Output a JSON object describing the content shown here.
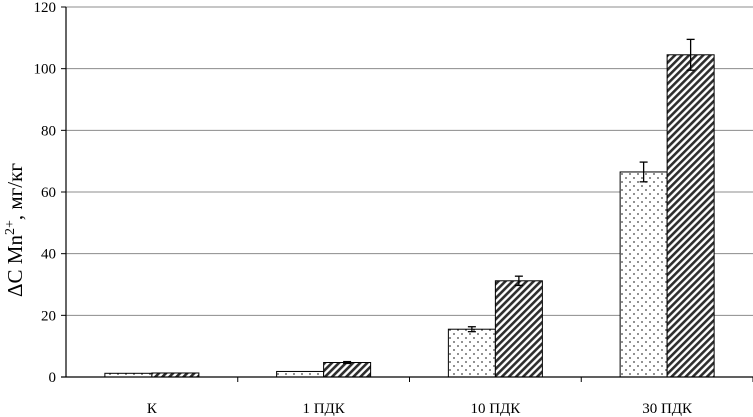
{
  "chart_data": {
    "type": "bar",
    "title": "",
    "xlabel": "",
    "ylabel": {
      "prefix": "ΔC Mn",
      "superscript": "2+",
      "suffix": ", мг/кг"
    },
    "ylim": [
      0,
      120
    ],
    "yticks": [
      0,
      20,
      40,
      60,
      80,
      100,
      120
    ],
    "grid": true,
    "legend": "none",
    "categories": [
      "К",
      "1 ПДК",
      "10 ПДК",
      "30 ПДК"
    ],
    "series": [
      {
        "pattern": "dotted",
        "color": "#ffffff",
        "values": [
          1.2,
          1.8,
          15.5,
          66.5
        ],
        "errors": [
          0,
          0,
          0.8,
          3.2
        ]
      },
      {
        "pattern": "diagonal-hatch",
        "color": "#333333",
        "values": [
          1.3,
          4.7,
          31.2,
          104.5
        ],
        "errors": [
          0,
          0.3,
          1.5,
          5.0
        ]
      }
    ]
  }
}
